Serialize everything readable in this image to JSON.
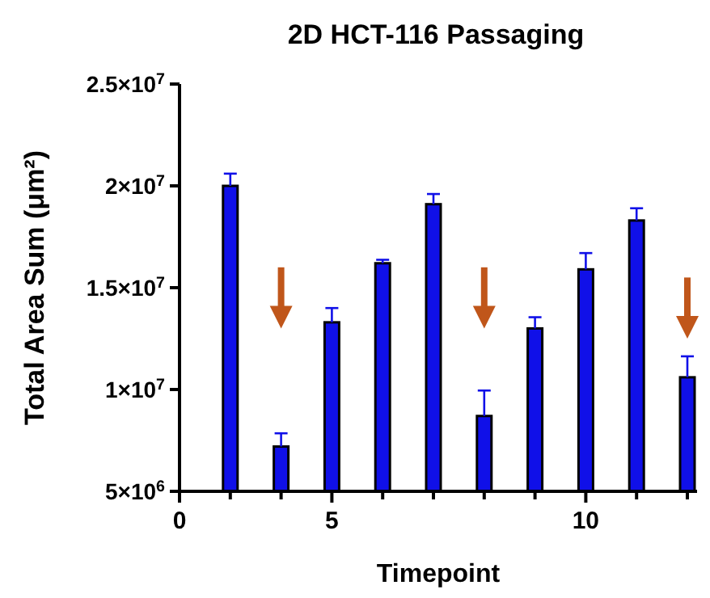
{
  "chart_data": {
    "type": "bar",
    "title": "2D HCT-116 Passaging",
    "xlabel": "Timepoint",
    "ylabel": "Total Area Sum (μm²)",
    "categories": [
      "0",
      null,
      null,
      "5",
      null,
      null,
      null,
      null,
      "10",
      null,
      null
    ],
    "values": [
      null,
      20000000,
      7200000,
      13300000,
      16200000,
      19100000,
      8700000,
      13000000,
      15900000,
      18300000,
      10600000
    ],
    "errors": [
      null,
      [
        20000000,
        20600000
      ],
      [
        7200000,
        7850000
      ],
      [
        13300000,
        14000000
      ],
      [
        16200000,
        16370000
      ],
      [
        19100000,
        19600000
      ],
      [
        8700000,
        9950000
      ],
      [
        13000000,
        13550000
      ],
      [
        15900000,
        16700000
      ],
      [
        18300000,
        18900000
      ],
      [
        10600000,
        11630000
      ]
    ],
    "color": "#1010e8",
    "ylim": [
      5000000,
      25000000
    ],
    "yticks": [
      {
        "value": 5000000,
        "label": "5×10$^{6}$"
      },
      {
        "value": 10000000,
        "label": "1×10$^{7}$"
      },
      {
        "value": 15000000,
        "label": "1.5×10$^{7}$"
      },
      {
        "value": 20000000,
        "label": "2×10$^{7}$"
      },
      {
        "value": 25000000,
        "label": "2.5×10$^{7}$"
      }
    ],
    "grid": false
  }
}
